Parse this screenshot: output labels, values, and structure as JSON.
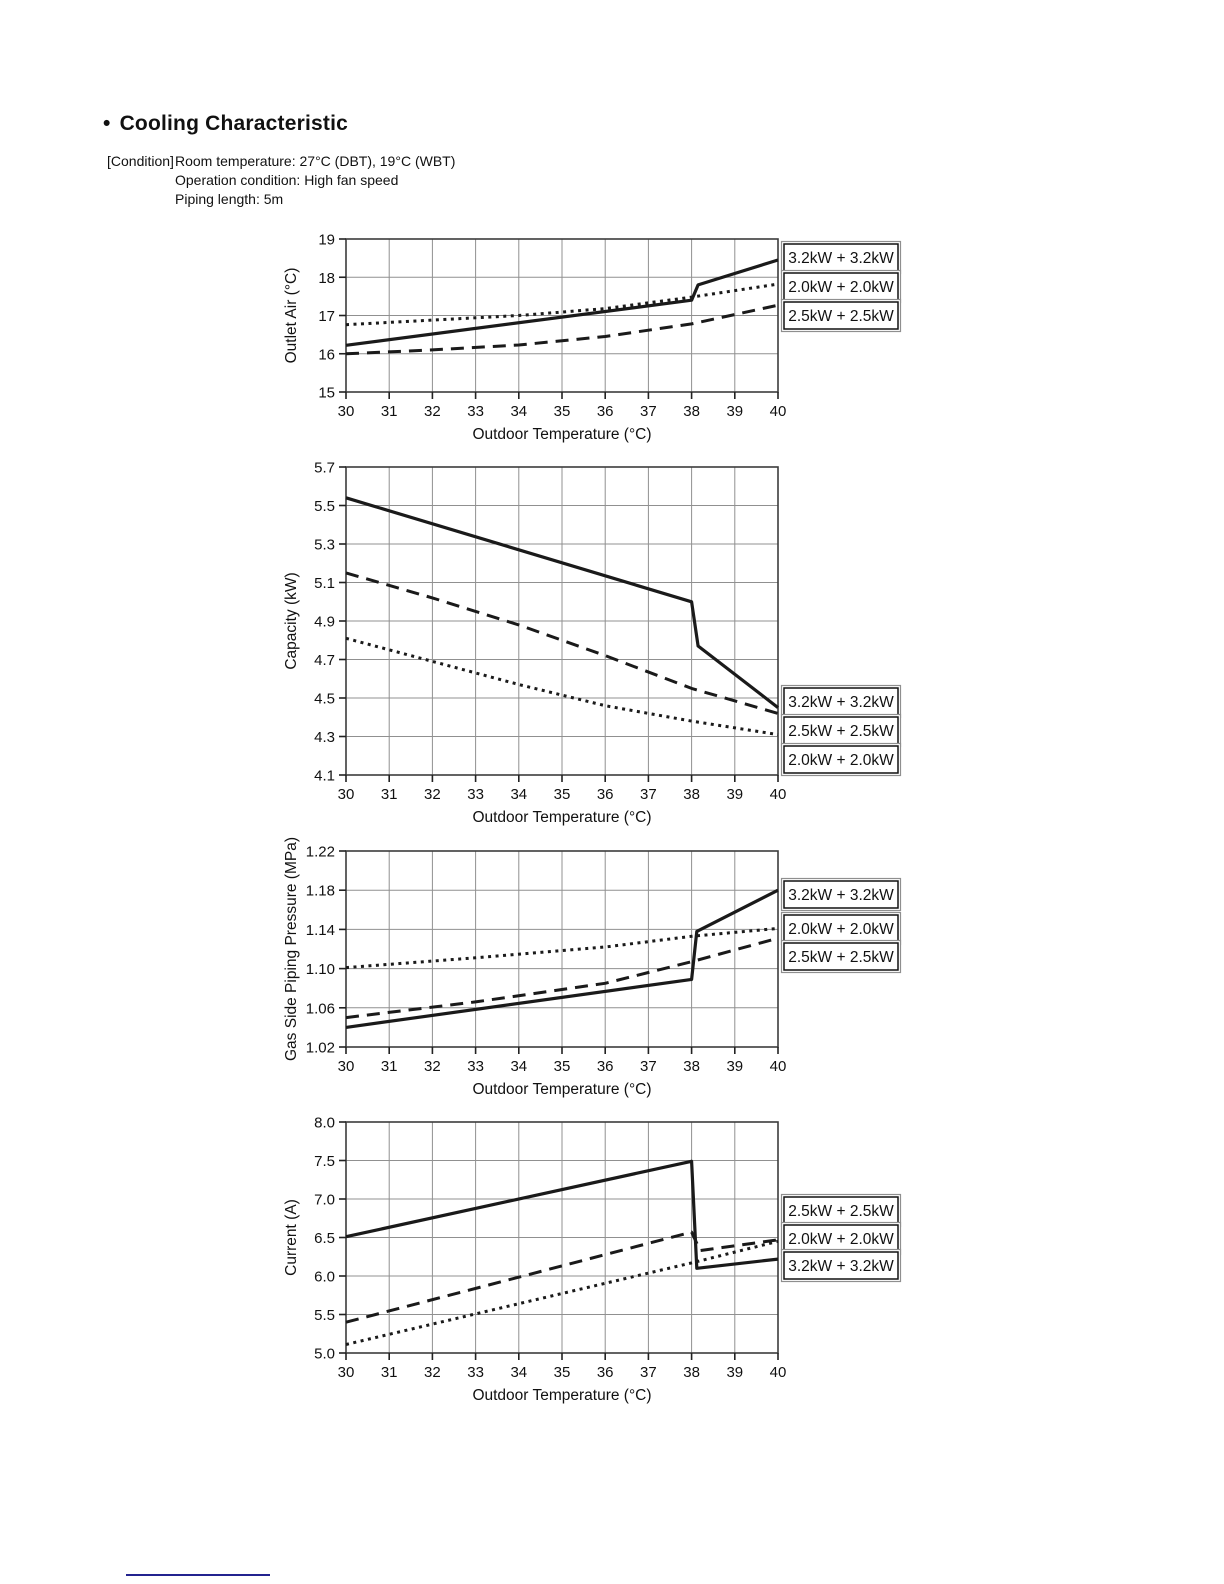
{
  "page": {
    "bullet": "•",
    "title": "Cooling Characteristic",
    "condition_label": "[Condition]",
    "condition_lines": [
      "Room temperature: 27°C (DBT), 19°C (WBT)",
      "Operation condition: High fan speed",
      "Piping length: 5m"
    ]
  },
  "chart_data": [
    {
      "type": "line",
      "name": "outlet-air",
      "xlabel": "Outdoor Temperature (°C)",
      "ylabel": "Outlet Air (°C)",
      "xlim": [
        30,
        40
      ],
      "ylim": [
        15,
        19
      ],
      "xticks": [
        30,
        31,
        32,
        33,
        34,
        35,
        36,
        37,
        38,
        39,
        40
      ],
      "yticks": [
        15,
        16,
        17,
        18,
        19
      ],
      "ytick_labels": [
        "15",
        "16",
        "17",
        "18",
        "19"
      ],
      "grid": true,
      "legend_position": "right",
      "legend_order": [
        "3.2kW + 3.2kW",
        "2.0kW + 2.0kW",
        "2.5kW + 2.5kW"
      ],
      "series": [
        {
          "name": "2.0kW + 2.0kW",
          "style": "dotted",
          "points": [
            [
              30,
              16.76
            ],
            [
              32,
              16.88
            ],
            [
              34,
              17.0
            ],
            [
              36,
              17.18
            ],
            [
              38,
              17.48
            ],
            [
              40,
              17.82
            ]
          ]
        },
        {
          "name": "2.5kW + 2.5kW",
          "style": "dashed",
          "points": [
            [
              30,
              16.0
            ],
            [
              32,
              16.1
            ],
            [
              34,
              16.23
            ],
            [
              36,
              16.45
            ],
            [
              38,
              16.78
            ],
            [
              40,
              17.27
            ]
          ]
        },
        {
          "name": "3.2kW + 3.2kW",
          "style": "solid",
          "points": [
            [
              30,
              16.22
            ],
            [
              38,
              17.4
            ],
            [
              38.15,
              17.8
            ],
            [
              40,
              18.45
            ]
          ]
        }
      ]
    },
    {
      "type": "line",
      "name": "capacity",
      "xlabel": "Outdoor Temperature (°C)",
      "ylabel": "Capacity (kW)",
      "xlim": [
        30,
        40
      ],
      "ylim": [
        4.1,
        5.7
      ],
      "xticks": [
        30,
        31,
        32,
        33,
        34,
        35,
        36,
        37,
        38,
        39,
        40
      ],
      "yticks": [
        4.1,
        4.3,
        4.5,
        4.7,
        4.9,
        5.1,
        5.3,
        5.5,
        5.7
      ],
      "ytick_labels": [
        "4.1",
        "4.3",
        "4.5",
        "4.7",
        "4.9",
        "5.1",
        "5.3",
        "5.5",
        "5.7"
      ],
      "grid": true,
      "legend_position": "right",
      "legend_order": [
        "3.2kW + 3.2kW",
        "2.5kW + 2.5kW",
        "2.0kW + 2.0kW"
      ],
      "series": [
        {
          "name": "2.0kW + 2.0kW",
          "style": "dotted",
          "points": [
            [
              30,
              4.81
            ],
            [
              32,
              4.69
            ],
            [
              34,
              4.57
            ],
            [
              36,
              4.46
            ],
            [
              38,
              4.38
            ],
            [
              40,
              4.31
            ]
          ]
        },
        {
          "name": "2.5kW + 2.5kW",
          "style": "dashed",
          "points": [
            [
              30,
              5.15
            ],
            [
              32,
              5.02
            ],
            [
              34,
              4.88
            ],
            [
              36,
              4.72
            ],
            [
              38,
              4.55
            ],
            [
              40,
              4.42
            ]
          ]
        },
        {
          "name": "3.2kW + 3.2kW",
          "style": "solid",
          "points": [
            [
              30,
              5.54
            ],
            [
              38,
              5.0
            ],
            [
              38.15,
              4.77
            ],
            [
              40,
              4.45
            ]
          ]
        }
      ]
    },
    {
      "type": "line",
      "name": "gas-side-piping-pressure",
      "xlabel": "Outdoor Temperature (°C)",
      "ylabel": "Gas Side Piping Pressure (MPa)",
      "xlim": [
        30,
        40
      ],
      "ylim": [
        1.02,
        1.22
      ],
      "xticks": [
        30,
        31,
        32,
        33,
        34,
        35,
        36,
        37,
        38,
        39,
        40
      ],
      "yticks": [
        1.02,
        1.06,
        1.1,
        1.14,
        1.18,
        1.22
      ],
      "ytick_labels": [
        "1.02",
        "1.06",
        "1.10",
        "1.14",
        "1.18",
        "1.22"
      ],
      "grid": true,
      "legend_position": "right",
      "legend_order": [
        "3.2kW + 3.2kW",
        "2.0kW + 2.0kW",
        "2.5kW + 2.5kW"
      ],
      "series": [
        {
          "name": "2.0kW + 2.0kW",
          "style": "dotted",
          "points": [
            [
              30,
              1.101
            ],
            [
              33,
              1.111
            ],
            [
              36,
              1.122
            ],
            [
              38,
              1.133
            ],
            [
              40,
              1.141
            ]
          ]
        },
        {
          "name": "2.5kW + 2.5kW",
          "style": "dashed",
          "points": [
            [
              30,
              1.05
            ],
            [
              33,
              1.066
            ],
            [
              36,
              1.085
            ],
            [
              38,
              1.107
            ],
            [
              40,
              1.131
            ]
          ]
        },
        {
          "name": "3.2kW + 3.2kW",
          "style": "solid",
          "points": [
            [
              30,
              1.04
            ],
            [
              38,
              1.089
            ],
            [
              38.12,
              1.138
            ],
            [
              40,
              1.18
            ]
          ]
        }
      ]
    },
    {
      "type": "line",
      "name": "current",
      "xlabel": "Outdoor Temperature (°C)",
      "ylabel": "Current (A)",
      "xlim": [
        30,
        40
      ],
      "ylim": [
        5.0,
        8.0
      ],
      "xticks": [
        30,
        31,
        32,
        33,
        34,
        35,
        36,
        37,
        38,
        39,
        40
      ],
      "yticks": [
        5.0,
        5.5,
        6.0,
        6.5,
        7.0,
        7.5,
        8.0
      ],
      "ytick_labels": [
        "5.0",
        "5.5",
        "6.0",
        "6.5",
        "7.0",
        "7.5",
        "8.0"
      ],
      "grid": true,
      "legend_position": "right",
      "legend_order": [
        "2.5kW + 2.5kW",
        "2.0kW + 2.0kW",
        "3.2kW + 3.2kW"
      ],
      "series": [
        {
          "name": "2.0kW + 2.0kW",
          "style": "dotted",
          "points": [
            [
              30,
              5.11
            ],
            [
              34,
              5.64
            ],
            [
              38,
              6.17
            ],
            [
              40,
              6.45
            ]
          ]
        },
        {
          "name": "2.5kW + 2.5kW",
          "style": "dashed",
          "points": [
            [
              30,
              5.4
            ],
            [
              38,
              6.57
            ],
            [
              38.2,
              6.33
            ],
            [
              40,
              6.47
            ]
          ]
        },
        {
          "name": "3.2kW + 3.2kW",
          "style": "solid",
          "points": [
            [
              30,
              6.51
            ],
            [
              38,
              7.49
            ],
            [
              38.12,
              6.1
            ],
            [
              40,
              6.22
            ]
          ]
        }
      ]
    }
  ]
}
